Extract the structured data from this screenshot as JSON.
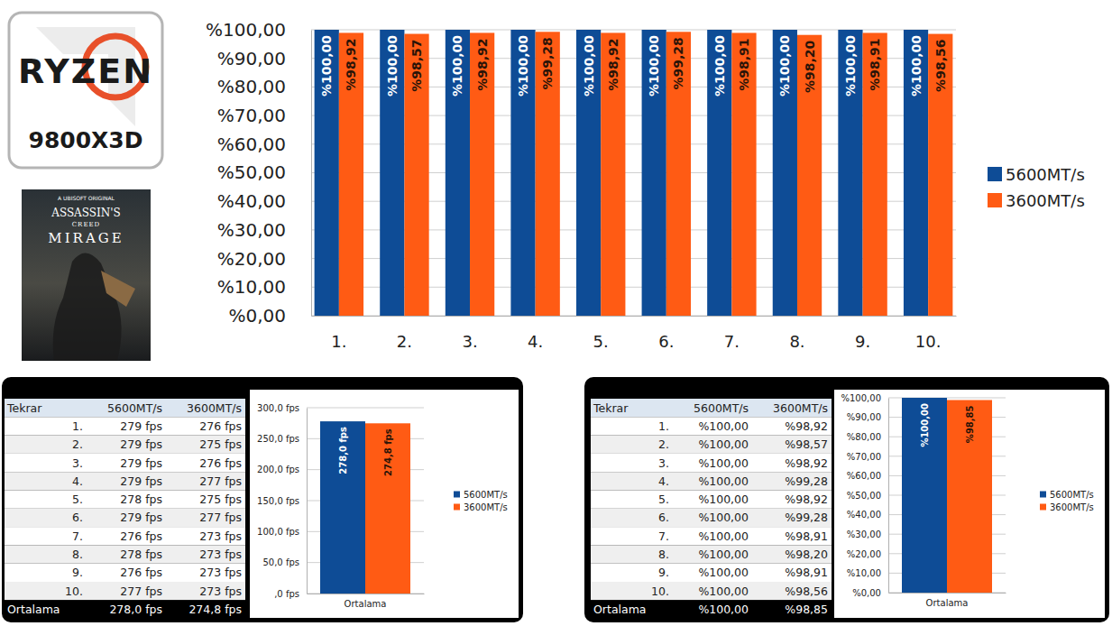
{
  "cpu_logo": {
    "brand": "RYZEN",
    "model": "9800X3D"
  },
  "game_cover": {
    "publisher": "A UBISOFT ORIGINAL",
    "title_line1": "ASSASSIN'S",
    "title_line2": "CREED",
    "title_line3": "MIRAGE"
  },
  "chart_data": [
    {
      "type": "bar",
      "categories": [
        "1.",
        "2.",
        "3.",
        "4.",
        "5.",
        "6.",
        "7.",
        "8.",
        "9.",
        "10."
      ],
      "series": [
        {
          "name": "5600MT/s",
          "color": "#0e4c96",
          "values": [
            100,
            100,
            100,
            100,
            100,
            100,
            100,
            100,
            100,
            100
          ],
          "value_labels": [
            "%100,00",
            "%100,00",
            "%100,00",
            "%100,00",
            "%100,00",
            "%100,00",
            "%100,00",
            "%100,00",
            "%100,00",
            "%100,00"
          ]
        },
        {
          "name": "3600MT/s",
          "color": "#ff5b14",
          "values": [
            98.92,
            98.57,
            98.92,
            99.28,
            98.92,
            99.28,
            98.91,
            98.2,
            98.91,
            98.56
          ],
          "value_labels": [
            "%98,92",
            "%98,57",
            "%98,92",
            "%99,28",
            "%98,92",
            "%99,28",
            "%98,91",
            "%98,20",
            "%98,91",
            "%98,56"
          ]
        }
      ],
      "ylim": [
        0,
        100
      ],
      "yticks": [
        {
          "value": 0,
          "label": "%0,00"
        },
        {
          "value": 10,
          "label": "%10,00"
        },
        {
          "value": 20,
          "label": "%20,00"
        },
        {
          "value": 30,
          "label": "%30,00"
        },
        {
          "value": 40,
          "label": "%40,00"
        },
        {
          "value": 50,
          "label": "%50,00"
        },
        {
          "value": 60,
          "label": "%60,00"
        },
        {
          "value": 70,
          "label": "%70,00"
        },
        {
          "value": 80,
          "label": "%80,00"
        },
        {
          "value": 90,
          "label": "%90,00"
        },
        {
          "value": 100,
          "label": "%100,00"
        }
      ],
      "grid": true,
      "legend": "right",
      "data_labels": true
    },
    {
      "type": "bar",
      "categories": [
        "Ortalama"
      ],
      "series": [
        {
          "name": "5600MT/s",
          "color": "#0e4c96",
          "values": [
            278.0
          ],
          "value_labels": [
            "278,0 fps"
          ]
        },
        {
          "name": "3600MT/s",
          "color": "#ff5b14",
          "values": [
            274.8
          ],
          "value_labels": [
            "274,8 fps"
          ]
        }
      ],
      "ylim": [
        0,
        300
      ],
      "yticks": [
        {
          "value": 0,
          "label": ",0 fps"
        },
        {
          "value": 50,
          "label": "50,0 fps"
        },
        {
          "value": 100,
          "label": "100,0 fps"
        },
        {
          "value": 150,
          "label": "150,0 fps"
        },
        {
          "value": 200,
          "label": "200,0 fps"
        },
        {
          "value": 250,
          "label": "250,0 fps"
        },
        {
          "value": 300,
          "label": "300,0 fps"
        }
      ],
      "grid": true,
      "legend": "right",
      "data_labels": true
    },
    {
      "type": "bar",
      "categories": [
        "Ortalama"
      ],
      "series": [
        {
          "name": "5600MT/s",
          "color": "#0e4c96",
          "values": [
            100
          ],
          "value_labels": [
            "%100,00"
          ]
        },
        {
          "name": "3600MT/s",
          "color": "#ff5b14",
          "values": [
            98.85
          ],
          "value_labels": [
            "%98,85"
          ]
        }
      ],
      "ylim": [
        0,
        100
      ],
      "yticks": [
        {
          "value": 0,
          "label": "%0,00"
        },
        {
          "value": 10,
          "label": "%10,00"
        },
        {
          "value": 20,
          "label": "%20,00"
        },
        {
          "value": 30,
          "label": "%30,00"
        },
        {
          "value": 40,
          "label": "%40,00"
        },
        {
          "value": 50,
          "label": "%50,00"
        },
        {
          "value": 60,
          "label": "%60,00"
        },
        {
          "value": 70,
          "label": "%70,00"
        },
        {
          "value": 80,
          "label": "%80,00"
        },
        {
          "value": 90,
          "label": "%90,00"
        },
        {
          "value": 100,
          "label": "%100,00"
        }
      ],
      "grid": true,
      "legend": "right",
      "data_labels": true
    }
  ],
  "tables": [
    {
      "columns": [
        "Tekrar",
        "5600MT/s",
        "3600MT/s"
      ],
      "rows": [
        [
          "1.",
          "279 fps",
          "276 fps"
        ],
        [
          "2.",
          "279 fps",
          "275 fps"
        ],
        [
          "3.",
          "279 fps",
          "276 fps"
        ],
        [
          "4.",
          "279 fps",
          "277 fps"
        ],
        [
          "5.",
          "278 fps",
          "275 fps"
        ],
        [
          "6.",
          "279 fps",
          "277 fps"
        ],
        [
          "7.",
          "276 fps",
          "273 fps"
        ],
        [
          "8.",
          "278 fps",
          "273 fps"
        ],
        [
          "9.",
          "276 fps",
          "273 fps"
        ],
        [
          "10.",
          "277 fps",
          "273 fps"
        ]
      ],
      "footer": [
        "Ortalama",
        "278,0 fps",
        "274,8 fps"
      ]
    },
    {
      "columns": [
        "Tekrar",
        "5600MT/s",
        "3600MT/s"
      ],
      "rows": [
        [
          "1.",
          "%100,00",
          "%98,92"
        ],
        [
          "2.",
          "%100,00",
          "%98,57"
        ],
        [
          "3.",
          "%100,00",
          "%98,92"
        ],
        [
          "4.",
          "%100,00",
          "%99,28"
        ],
        [
          "5.",
          "%100,00",
          "%98,92"
        ],
        [
          "6.",
          "%100,00",
          "%99,28"
        ],
        [
          "7.",
          "%100,00",
          "%98,91"
        ],
        [
          "8.",
          "%100,00",
          "%98,20"
        ],
        [
          "9.",
          "%100,00",
          "%98,91"
        ],
        [
          "10.",
          "%100,00",
          "%98,56"
        ]
      ],
      "footer": [
        "Ortalama",
        "%100,00",
        "%98,85"
      ]
    }
  ]
}
